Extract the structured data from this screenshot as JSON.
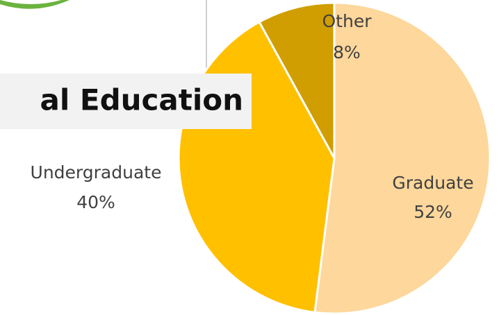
{
  "chart_data": {
    "type": "pie",
    "title": "al Education",
    "categories": [
      "Graduate",
      "Undergraduate",
      "Other"
    ],
    "values": [
      52,
      40,
      8
    ],
    "value_labels": [
      "52%",
      "40%",
      "8%"
    ],
    "colors": [
      "#FDD79B",
      "#FFC000",
      "#D09E00"
    ]
  }
}
